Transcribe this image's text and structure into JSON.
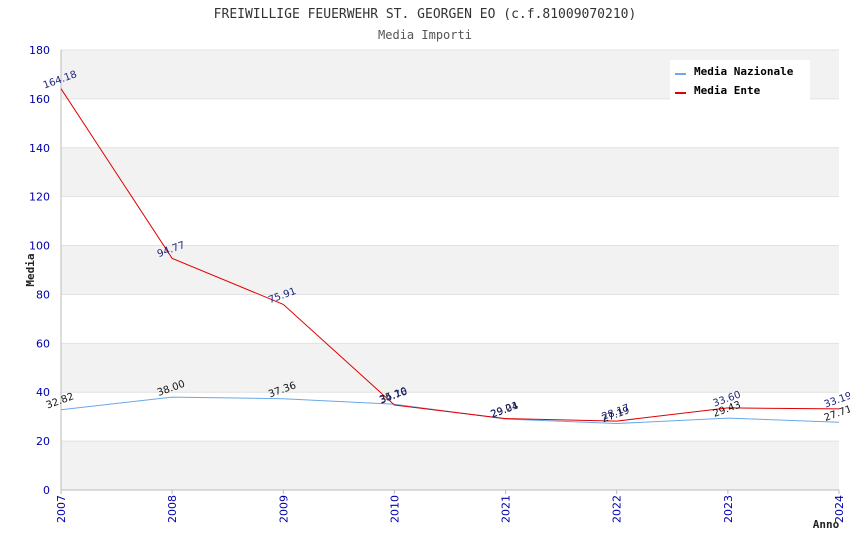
{
  "chart_data": {
    "type": "line",
    "title": "FREIWILLIGE FEUERWEHR ST. GEORGEN EO (c.f.81009070210)",
    "subtitle": "Media Importi",
    "xlabel": "Anno",
    "ylabel": "Media",
    "categories": [
      "2007",
      "2008",
      "2009",
      "2010",
      "2021",
      "2022",
      "2023",
      "2024"
    ],
    "ylim": [
      0,
      180
    ],
    "yticks": [
      0,
      20,
      40,
      60,
      80,
      100,
      120,
      140,
      160,
      180
    ],
    "grid": true,
    "legend_position": "top-right",
    "series": [
      {
        "name": "Media Nazionale",
        "color": "#6aa8e8",
        "values": [
          32.82,
          38.0,
          37.36,
          35.1,
          29.04,
          27.19,
          29.43,
          27.71
        ],
        "labels": [
          "32.82",
          "38.00",
          "37.36",
          "35.10",
          "29.04",
          "27.19",
          "29.43",
          "27.71"
        ]
      },
      {
        "name": "Media Ente",
        "color": "#e00000",
        "values": [
          164.18,
          94.77,
          75.91,
          34.76,
          29.21,
          28.17,
          33.6,
          33.19
        ],
        "labels": [
          "164.18",
          "94.77",
          "75.91",
          "34.76",
          "29.21",
          "28.17",
          "33.60",
          "33.19"
        ]
      }
    ]
  }
}
